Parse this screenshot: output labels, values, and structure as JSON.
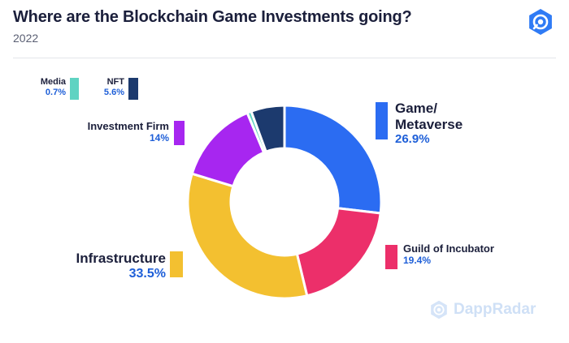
{
  "header": {
    "title": "Where are the Blockchain Game Investments going?",
    "subtitle": "2022",
    "logo_icon": "dappradar-logo-icon"
  },
  "watermark": {
    "text": "DappRadar",
    "icon": "dappradar-logo-icon"
  },
  "colors": {
    "accent": "#2f6fe4",
    "pct_text": "#1e5fd8"
  },
  "chart_data": {
    "type": "pie",
    "donut": true,
    "title": "Where are the Blockchain Game Investments going?",
    "subtitle": "2022",
    "slices": [
      {
        "label": "Game/ Metaverse",
        "label_lines": [
          "Game/",
          "Metaverse"
        ],
        "value": 26.9,
        "value_label": "26.9%",
        "color": "#2b6cf2"
      },
      {
        "label": "Guild of Incubator",
        "label_lines": [
          "Guild of Incubator"
        ],
        "value": 19.4,
        "value_label": "19.4%",
        "color": "#ec2f6a"
      },
      {
        "label": "Infrastructure",
        "label_lines": [
          "Infrastructure"
        ],
        "value": 33.5,
        "value_label": "33.5%",
        "color": "#f3c030"
      },
      {
        "label": "Investment Firm",
        "label_lines": [
          "Investment Firm"
        ],
        "value": 14,
        "value_label": "14%",
        "color": "#a726f0"
      },
      {
        "label": "Media",
        "label_lines": [
          "Media"
        ],
        "value": 0.7,
        "value_label": "0.7%",
        "color": "#5fd3c2"
      },
      {
        "label": "NFT",
        "label_lines": [
          "NFT"
        ],
        "value": 5.6,
        "value_label": "5.6%",
        "color": "#1c3a6e"
      }
    ]
  }
}
